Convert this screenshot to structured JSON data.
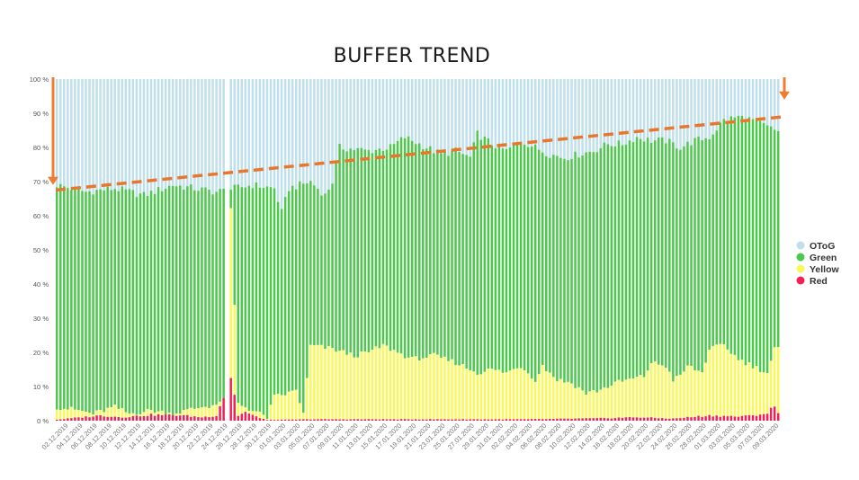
{
  "chart_data": {
    "type": "bar",
    "stacked": true,
    "percent_stacked": true,
    "title": "BUFFER TREND",
    "y_ticks": [
      "0 %",
      "10 %",
      "20 %",
      "30 %",
      "40 %",
      "50 %",
      "60 %",
      "70 %",
      "80 %",
      "90 %",
      "100 %"
    ],
    "ylim": [
      0,
      100
    ],
    "x_tick_labels": [
      "02.12.2019",
      "04.12.2019",
      "06.12.2019",
      "08.12.2019",
      "10.12.2019",
      "12.12.2019",
      "14.12.2019",
      "16.12.2019",
      "18.12.2019",
      "20.12.2019",
      "22.12.2019",
      "24.12.2019",
      "26.12.2019",
      "28.12.2019",
      "30.12.2019",
      "01.01.2020",
      "03.01.2020",
      "05.01.2020",
      "07.01.2020",
      "09.01.2020",
      "11.01.2020",
      "13.01.2020",
      "15.01.2020",
      "17.01.2020",
      "19.01.2020",
      "21.01.2020",
      "23.01.2020",
      "25.01.2020",
      "27.01.2020",
      "29.01.2020",
      "31.01.2020",
      "02.02.2020",
      "04.02.2020",
      "06.02.2020",
      "08.02.2020",
      "10.02.2020",
      "12.02.2020",
      "14.02.2020",
      "16.02.2020",
      "18.02.2020",
      "20.02.2020",
      "22.02.2020",
      "24.02.2020",
      "26.02.2020",
      "28.02.2020",
      "01.03.2020",
      "03.03.2020",
      "05.03.2020",
      "07.03.2020",
      "09.03.2020"
    ],
    "series_names": [
      "OToG",
      "Green",
      "Yellow",
      "Red"
    ],
    "colors": {
      "OToG": "#bfe0ea",
      "Green": "#4cc84c",
      "Yellow": "#f8f85a",
      "Red": "#ee2255"
    },
    "legend": {
      "position": "right",
      "labels": [
        "OToG",
        "Green",
        "Yellow",
        "Red"
      ]
    },
    "trendline": {
      "start": 67.5,
      "end": 89,
      "color": "#e8762c",
      "style": "dashed"
    },
    "arrows": {
      "color": "#ee7d30",
      "left_target": 69,
      "right_target": 94
    },
    "bar_count": 200,
    "green_top_anchors": [
      [
        0,
        69
      ],
      [
        8,
        67
      ],
      [
        16,
        68
      ],
      [
        24,
        66
      ],
      [
        32,
        69
      ],
      [
        44,
        67
      ],
      [
        54,
        69
      ],
      [
        60,
        68
      ],
      [
        62,
        61
      ],
      [
        64,
        68
      ],
      [
        70,
        70
      ],
      [
        74,
        66
      ],
      [
        76,
        70
      ],
      [
        78,
        80
      ],
      [
        86,
        79
      ],
      [
        92,
        80
      ],
      [
        96,
        83
      ],
      [
        102,
        80
      ],
      [
        106,
        78
      ],
      [
        110,
        79
      ],
      [
        114,
        77
      ],
      [
        116,
        84
      ],
      [
        120,
        81
      ],
      [
        124,
        79
      ],
      [
        128,
        82
      ],
      [
        132,
        80
      ],
      [
        136,
        78
      ],
      [
        140,
        77
      ],
      [
        144,
        78
      ],
      [
        148,
        79
      ],
      [
        152,
        81
      ],
      [
        156,
        81
      ],
      [
        160,
        83
      ],
      [
        164,
        82
      ],
      [
        168,
        82
      ],
      [
        172,
        80
      ],
      [
        176,
        82
      ],
      [
        180,
        83
      ],
      [
        184,
        88
      ],
      [
        188,
        89
      ],
      [
        192,
        88
      ],
      [
        196,
        86
      ],
      [
        198,
        85
      ],
      [
        199,
        85
      ]
    ],
    "yellow_top_anchors": [
      [
        0,
        4
      ],
      [
        6,
        3
      ],
      [
        10,
        2
      ],
      [
        16,
        4
      ],
      [
        20,
        2
      ],
      [
        26,
        3
      ],
      [
        32,
        2
      ],
      [
        40,
        4
      ],
      [
        46,
        5
      ],
      [
        48,
        62
      ],
      [
        50,
        5
      ],
      [
        52,
        4
      ],
      [
        56,
        2
      ],
      [
        58,
        1
      ],
      [
        60,
        7
      ],
      [
        64,
        8
      ],
      [
        66,
        9
      ],
      [
        68,
        2
      ],
      [
        70,
        22
      ],
      [
        76,
        21
      ],
      [
        82,
        19
      ],
      [
        86,
        20
      ],
      [
        90,
        22
      ],
      [
        94,
        20
      ],
      [
        98,
        18
      ],
      [
        104,
        19
      ],
      [
        110,
        17
      ],
      [
        116,
        14
      ],
      [
        120,
        15
      ],
      [
        124,
        14
      ],
      [
        128,
        16
      ],
      [
        132,
        12
      ],
      [
        134,
        16
      ],
      [
        138,
        12
      ],
      [
        142,
        11
      ],
      [
        146,
        8
      ],
      [
        150,
        9
      ],
      [
        154,
        11
      ],
      [
        158,
        12
      ],
      [
        162,
        13
      ],
      [
        164,
        17
      ],
      [
        168,
        16
      ],
      [
        170,
        12
      ],
      [
        172,
        13
      ],
      [
        174,
        16
      ],
      [
        178,
        14
      ],
      [
        180,
        21
      ],
      [
        184,
        22
      ],
      [
        188,
        18
      ],
      [
        192,
        16
      ],
      [
        196,
        14
      ],
      [
        198,
        21
      ],
      [
        199,
        21
      ]
    ],
    "red_top_anchors": [
      [
        0,
        0.3
      ],
      [
        12,
        1.5
      ],
      [
        18,
        1
      ],
      [
        26,
        1.7
      ],
      [
        34,
        1.6
      ],
      [
        40,
        1
      ],
      [
        44,
        1.5
      ],
      [
        48,
        13
      ],
      [
        50,
        1.5
      ],
      [
        52,
        2.5
      ],
      [
        54,
        1.5
      ],
      [
        58,
        0.2
      ],
      [
        70,
        0.4
      ],
      [
        130,
        0.4
      ],
      [
        150,
        0.7
      ],
      [
        160,
        1
      ],
      [
        170,
        0.6
      ],
      [
        180,
        1.5
      ],
      [
        188,
        1.2
      ],
      [
        192,
        1.5
      ],
      [
        196,
        2.2
      ],
      [
        198,
        4.3
      ],
      [
        199,
        2
      ]
    ]
  }
}
